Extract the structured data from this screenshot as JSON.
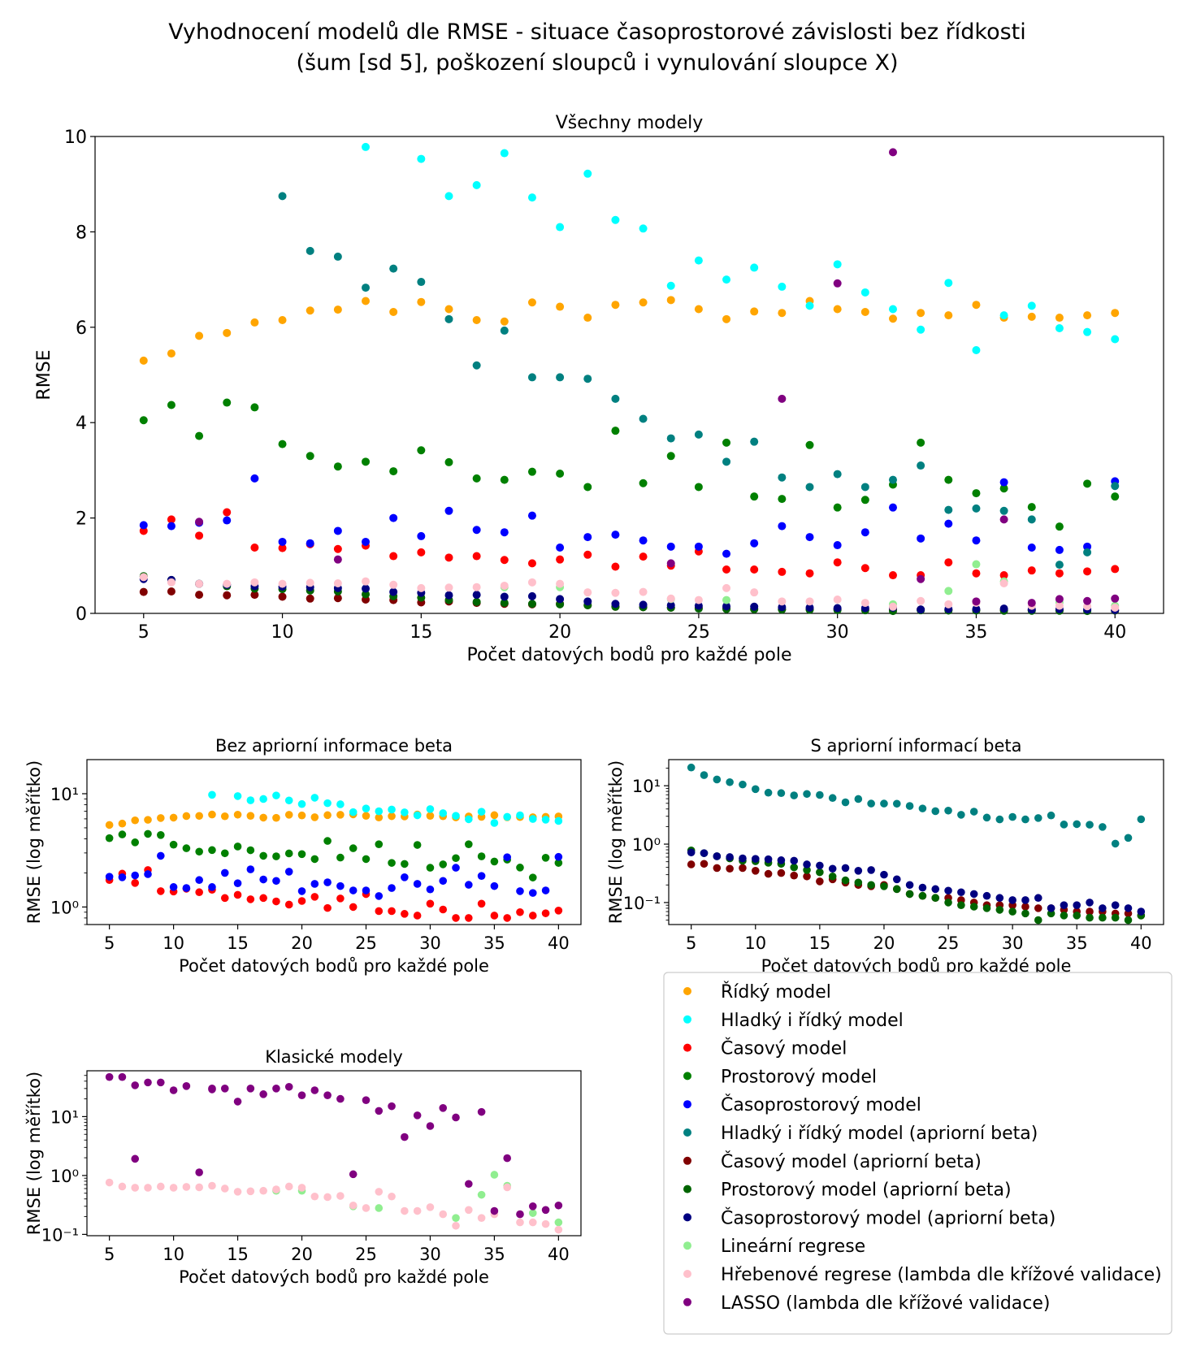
{
  "figure": {
    "title_line1": "Vyhodnocení modelů dle RMSE - situace časoprostorové závislosti bez řídkosti",
    "title_line2": "(šum [sd 5], poškození sloupců i vynulování sloupce X)"
  },
  "legend": [
    {
      "label": "Řídký model",
      "color": "#ffa500"
    },
    {
      "label": "Hladký i řídký model",
      "color": "#00ffff"
    },
    {
      "label": "Časový model",
      "color": "#ff0000"
    },
    {
      "label": "Prostorový model",
      "color": "#008000"
    },
    {
      "label": "Časoprostorový model",
      "color": "#0000ff"
    },
    {
      "label": "Hladký i řídký model (apriorní beta)",
      "color": "#008080"
    },
    {
      "label": "Časový model (apriorní beta)",
      "color": "#800000"
    },
    {
      "label": "Prostorový model (apriorní beta)",
      "color": "#006400"
    },
    {
      "label": "Časoprostorový model (apriorní beta)",
      "color": "#000080"
    },
    {
      "label": "Lineární regrese",
      "color": "#90ee90"
    },
    {
      "label": "Hřebenové regrese (lambda dle křížové validace)",
      "color": "#ffc0cb"
    },
    {
      "label": "LASSO (lambda dle křížové validace)",
      "color": "#800080"
    }
  ],
  "chart_data": [
    {
      "type": "scatter",
      "title": "Všechny modely",
      "xlabel": "Počet datových bodů pro každé pole",
      "ylabel": "RMSE",
      "xlim": [
        3.25,
        41.75
      ],
      "ylim": [
        0,
        10
      ],
      "yscale": "linear",
      "xticks": [
        5,
        10,
        15,
        20,
        25,
        30,
        35,
        40
      ],
      "yticks": [
        0,
        2,
        4,
        6,
        8,
        10
      ],
      "series_indices": [
        0,
        1,
        2,
        3,
        4,
        5,
        6,
        7,
        8,
        9,
        10,
        11
      ]
    },
    {
      "type": "scatter",
      "title": "Bez apriorní informace beta",
      "xlabel": "Počet datových bodů pro každé pole",
      "ylabel": "RMSE (log měřítko)",
      "xlim": [
        3.25,
        41.75
      ],
      "ylim": [
        0.7,
        20
      ],
      "yscale": "log",
      "xticks": [
        5,
        10,
        15,
        20,
        25,
        30,
        35,
        40
      ],
      "yticks": [
        {
          "value": 1,
          "label": "10⁰"
        },
        {
          "value": 10,
          "label": "10¹"
        }
      ],
      "series_indices": [
        0,
        1,
        2,
        3,
        4
      ]
    },
    {
      "type": "scatter",
      "title": "S apriorní informací beta",
      "xlabel": "Počet datových bodů pro každé pole",
      "ylabel": "RMSE (log měřítko)",
      "xlim": [
        3.25,
        41.75
      ],
      "ylim": [
        0.042,
        28
      ],
      "yscale": "log",
      "xticks": [
        5,
        10,
        15,
        20,
        25,
        30,
        35,
        40
      ],
      "yticks": [
        {
          "value": 0.1,
          "label": "10⁻¹"
        },
        {
          "value": 1,
          "label": "10⁰"
        },
        {
          "value": 10,
          "label": "10¹"
        }
      ],
      "series_indices": [
        5,
        6,
        7,
        8
      ]
    },
    {
      "type": "scatter",
      "title": "Klasické modely",
      "xlabel": "Počet datových bodů pro každé pole",
      "ylabel": "RMSE (log měřítko)",
      "xlim": [
        3.25,
        41.75
      ],
      "ylim": [
        0.095,
        60
      ],
      "yscale": "log",
      "xticks": [
        5,
        10,
        15,
        20,
        25,
        30,
        35,
        40
      ],
      "yticks": [
        {
          "value": 0.1,
          "label": "10⁻¹"
        },
        {
          "value": 1,
          "label": "10⁰"
        },
        {
          "value": 10,
          "label": "10¹"
        }
      ],
      "series_indices": [
        9,
        10,
        11
      ]
    }
  ],
  "series": [
    {
      "name": "Řídký model",
      "x": [
        5,
        6,
        7,
        8,
        9,
        10,
        11,
        12,
        13,
        14,
        15,
        16,
        17,
        18,
        19,
        20,
        21,
        22,
        23,
        24,
        25,
        26,
        27,
        28,
        29,
        30,
        31,
        32,
        33,
        34,
        35,
        36,
        37,
        38,
        39,
        40
      ],
      "y": [
        5.3,
        5.45,
        5.82,
        5.88,
        6.1,
        6.15,
        6.35,
        6.37,
        6.55,
        6.32,
        6.53,
        6.38,
        6.15,
        6.12,
        6.52,
        6.43,
        6.2,
        6.47,
        6.52,
        6.57,
        6.38,
        6.17,
        6.33,
        6.3,
        6.55,
        6.38,
        6.32,
        6.18,
        6.3,
        6.25,
        6.47,
        6.2,
        6.22,
        6.2,
        6.25,
        6.3
      ]
    },
    {
      "name": "Hladký i řídký model",
      "x": [
        13,
        15,
        16,
        17,
        18,
        19,
        20,
        21,
        22,
        23,
        24,
        25,
        26,
        27,
        28,
        29,
        30,
        31,
        32,
        33,
        34,
        35,
        36,
        37,
        38,
        39,
        40
      ],
      "y": [
        9.78,
        9.53,
        8.75,
        8.98,
        9.65,
        8.72,
        8.1,
        9.22,
        8.25,
        8.07,
        6.87,
        7.4,
        7.0,
        7.25,
        6.85,
        6.45,
        7.32,
        6.73,
        6.38,
        5.95,
        6.93,
        5.52,
        6.25,
        6.45,
        5.98,
        5.9,
        5.75
      ]
    },
    {
      "name": "Časový model",
      "x": [
        5,
        6,
        7,
        8,
        9,
        10,
        11,
        12,
        13,
        14,
        15,
        16,
        17,
        18,
        19,
        20,
        21,
        22,
        23,
        24,
        25,
        26,
        27,
        28,
        29,
        30,
        31,
        32,
        33,
        34,
        35,
        36,
        37,
        38,
        39,
        40
      ],
      "y": [
        1.73,
        1.97,
        1.63,
        2.12,
        1.38,
        1.37,
        1.45,
        1.35,
        1.42,
        1.2,
        1.28,
        1.17,
        1.2,
        1.12,
        1.05,
        1.13,
        1.23,
        0.98,
        1.19,
        1.0,
        1.3,
        0.92,
        0.92,
        0.87,
        0.84,
        1.07,
        0.95,
        0.8,
        0.8,
        1.07,
        0.84,
        0.8,
        0.9,
        0.84,
        0.88,
        0.93
      ]
    },
    {
      "name": "Prostorový model",
      "x": [
        5,
        6,
        7,
        8,
        9,
        10,
        11,
        12,
        13,
        14,
        15,
        16,
        17,
        18,
        19,
        20,
        21,
        22,
        23,
        24,
        25,
        26,
        27,
        28,
        29,
        30,
        31,
        32,
        33,
        34,
        35,
        36,
        37,
        38,
        39,
        40
      ],
      "y": [
        4.05,
        4.37,
        3.72,
        4.42,
        4.32,
        3.55,
        3.3,
        3.08,
        3.18,
        2.98,
        3.42,
        3.17,
        2.83,
        2.8,
        2.97,
        2.93,
        2.65,
        3.83,
        2.73,
        3.3,
        2.65,
        3.58,
        2.45,
        2.4,
        3.53,
        2.22,
        2.38,
        2.7,
        3.58,
        2.8,
        2.52,
        2.62,
        2.23,
        1.82,
        2.72,
        2.45
      ]
    },
    {
      "name": "Časoprostorový model",
      "x": [
        5,
        6,
        7,
        8,
        9,
        10,
        11,
        12,
        13,
        14,
        15,
        16,
        17,
        18,
        19,
        20,
        21,
        22,
        23,
        24,
        25,
        26,
        27,
        28,
        29,
        30,
        31,
        32,
        33,
        34,
        35,
        36,
        37,
        38,
        39,
        40
      ],
      "y": [
        1.85,
        1.83,
        1.9,
        1.95,
        2.83,
        1.5,
        1.47,
        1.73,
        1.5,
        2.0,
        1.62,
        2.15,
        1.75,
        1.7,
        2.05,
        1.38,
        1.6,
        1.65,
        1.53,
        1.4,
        1.4,
        1.25,
        1.47,
        1.83,
        1.6,
        1.43,
        1.7,
        2.22,
        1.57,
        1.88,
        1.53,
        2.75,
        1.38,
        1.33,
        1.4,
        2.77
      ]
    },
    {
      "name": "Hladký i řídký model (apriorní beta)",
      "x": [
        5,
        6,
        7,
        8,
        9,
        10,
        11,
        12,
        13,
        14,
        15,
        16,
        17,
        18,
        19,
        20,
        21,
        22,
        23,
        24,
        25,
        26,
        27,
        28,
        29,
        30,
        31,
        32,
        33,
        34,
        35,
        36,
        37,
        38,
        39,
        40
      ],
      "y": [
        20.5,
        15.2,
        12.8,
        11.5,
        10.5,
        8.75,
        7.6,
        7.48,
        6.83,
        7.23,
        6.95,
        6.17,
        5.2,
        5.93,
        4.95,
        4.95,
        4.92,
        4.5,
        4.08,
        3.67,
        3.75,
        3.18,
        3.6,
        2.85,
        2.65,
        2.92,
        2.65,
        2.8,
        3.1,
        2.17,
        2.2,
        2.15,
        1.97,
        1.02,
        1.28,
        2.67
      ]
    },
    {
      "name": "Časový model (apriorní beta)",
      "x": [
        5,
        6,
        7,
        8,
        9,
        10,
        11,
        12,
        13,
        14,
        15,
        16,
        17,
        18,
        19,
        20,
        21,
        22,
        23,
        24,
        25,
        26,
        27,
        28,
        29,
        30,
        31,
        32,
        33,
        34,
        35,
        36,
        37,
        38,
        39,
        40
      ],
      "y": [
        0.45,
        0.46,
        0.39,
        0.38,
        0.39,
        0.35,
        0.31,
        0.32,
        0.29,
        0.28,
        0.23,
        0.25,
        0.22,
        0.2,
        0.19,
        0.2,
        0.17,
        0.14,
        0.13,
        0.12,
        0.12,
        0.11,
        0.1,
        0.09,
        0.09,
        0.09,
        0.085,
        0.08,
        0.08,
        0.075,
        0.07,
        0.07,
        0.07,
        0.065,
        0.065,
        0.06
      ]
    },
    {
      "name": "Prostorový model (apriorní beta)",
      "x": [
        5,
        6,
        7,
        8,
        9,
        10,
        11,
        12,
        13,
        14,
        15,
        16,
        17,
        18,
        19,
        20,
        21,
        22,
        23,
        24,
        25,
        26,
        27,
        28,
        29,
        30,
        31,
        32,
        33,
        34,
        35,
        36,
        37,
        38,
        39,
        40
      ],
      "y": [
        0.78,
        0.7,
        0.62,
        0.57,
        0.52,
        0.51,
        0.48,
        0.46,
        0.4,
        0.36,
        0.33,
        0.28,
        0.24,
        0.22,
        0.2,
        0.19,
        0.17,
        0.14,
        0.13,
        0.12,
        0.1,
        0.09,
        0.085,
        0.08,
        0.075,
        0.07,
        0.065,
        0.05,
        0.065,
        0.06,
        0.06,
        0.055,
        0.055,
        0.055,
        0.05,
        0.06
      ]
    },
    {
      "name": "Časoprostorový model (apriorní beta)",
      "x": [
        5,
        6,
        7,
        8,
        9,
        10,
        11,
        12,
        13,
        14,
        15,
        16,
        17,
        18,
        19,
        20,
        21,
        22,
        23,
        24,
        25,
        26,
        27,
        28,
        29,
        30,
        31,
        32,
        33,
        34,
        35,
        36,
        37,
        38,
        39,
        40
      ],
      "y": [
        0.72,
        0.7,
        0.62,
        0.6,
        0.57,
        0.56,
        0.55,
        0.53,
        0.52,
        0.45,
        0.43,
        0.38,
        0.39,
        0.35,
        0.36,
        0.3,
        0.25,
        0.2,
        0.18,
        0.17,
        0.16,
        0.15,
        0.14,
        0.13,
        0.12,
        0.11,
        0.11,
        0.12,
        0.08,
        0.09,
        0.09,
        0.1,
        0.08,
        0.09,
        0.08,
        0.07
      ]
    },
    {
      "name": "Lineární regrese",
      "x": [
        18,
        20,
        24,
        26,
        32,
        34,
        35,
        36,
        38,
        40
      ],
      "y": [
        0.55,
        0.55,
        0.3,
        0.28,
        0.19,
        0.47,
        1.03,
        0.67,
        0.23,
        0.16
      ]
    },
    {
      "name": "Hřebenové regrese (lambda dle křížové validace)",
      "x": [
        5,
        6,
        7,
        8,
        9,
        10,
        11,
        12,
        13,
        14,
        15,
        16,
        17,
        18,
        19,
        20,
        21,
        22,
        23,
        24,
        25,
        26,
        27,
        28,
        29,
        30,
        31,
        32,
        33,
        34,
        35,
        36,
        37,
        38,
        39,
        40
      ],
      "y": [
        0.76,
        0.65,
        0.62,
        0.62,
        0.65,
        0.62,
        0.64,
        0.63,
        0.67,
        0.6,
        0.53,
        0.54,
        0.55,
        0.58,
        0.65,
        0.62,
        0.44,
        0.43,
        0.45,
        0.31,
        0.28,
        0.53,
        0.44,
        0.25,
        0.25,
        0.29,
        0.22,
        0.14,
        0.26,
        0.19,
        0.22,
        0.63,
        0.16,
        0.16,
        0.15,
        0.12
      ]
    },
    {
      "name": "LASSO (lambda dle křížové validace)",
      "x": [
        5,
        6,
        7,
        7,
        8,
        9,
        10,
        11,
        12,
        13,
        13,
        14,
        15,
        16,
        17,
        18,
        19,
        20,
        21,
        22,
        23,
        24,
        25,
        26,
        27,
        28,
        29,
        30,
        31,
        32,
        33,
        34,
        35,
        36,
        37,
        38,
        39,
        40
      ],
      "y": [
        47,
        47,
        1.92,
        34,
        38,
        38,
        28,
        33,
        1.13,
        30,
        29,
        30,
        18,
        30,
        24,
        30,
        32,
        23,
        28,
        23,
        20,
        1.05,
        19,
        12.5,
        15,
        4.5,
        10.5,
        6.92,
        14,
        9.67,
        0.72,
        12,
        0.25,
        1.97,
        0.22,
        0.3,
        0.26,
        0.31
      ]
    }
  ]
}
